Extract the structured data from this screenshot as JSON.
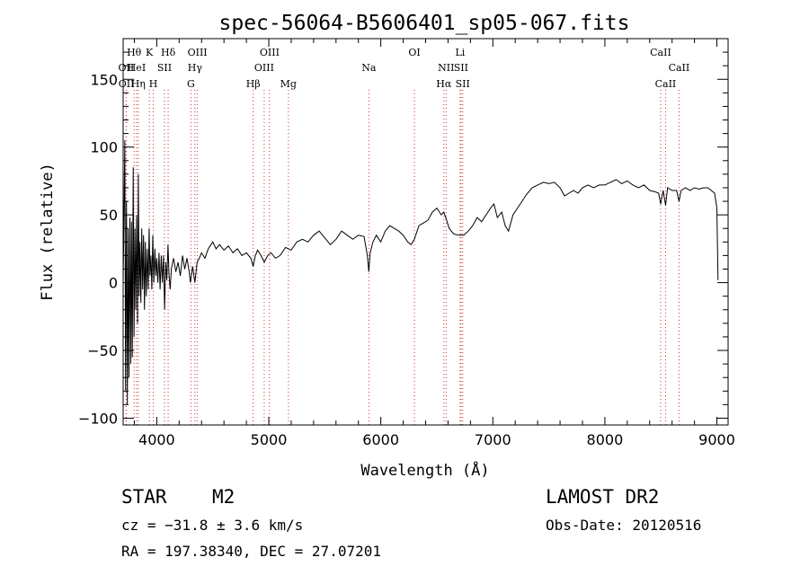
{
  "chart_data": {
    "type": "line",
    "title": "spec-56064-B5606401_sp05-067.fits",
    "xlabel": "Wavelength (Å)",
    "ylabel": "Flux (relative)",
    "xlim": [
      3700,
      9100
    ],
    "ylim": [
      -105,
      180
    ],
    "xticks": [
      4000,
      5000,
      6000,
      7000,
      8000,
      9000
    ],
    "yticks": [
      -100,
      -50,
      0,
      50,
      100,
      150
    ],
    "grid": false,
    "series": [
      {
        "values": [
          [
            3700,
            0
          ],
          [
            3715,
            105
          ],
          [
            3722,
            -80
          ],
          [
            3730,
            60
          ],
          [
            3738,
            -90
          ],
          [
            3745,
            40
          ],
          [
            3752,
            -70
          ],
          [
            3760,
            48
          ],
          [
            3768,
            -60
          ],
          [
            3775,
            45
          ],
          [
            3782,
            -55
          ],
          [
            3790,
            85
          ],
          [
            3797,
            -40
          ],
          [
            3805,
            40
          ],
          [
            3812,
            -20
          ],
          [
            3820,
            50
          ],
          [
            3828,
            -30
          ],
          [
            3836,
            80
          ],
          [
            3843,
            -10
          ],
          [
            3850,
            30
          ],
          [
            3858,
            -15
          ],
          [
            3866,
            40
          ],
          [
            3874,
            -5
          ],
          [
            3882,
            35
          ],
          [
            3890,
            -20
          ],
          [
            3898,
            30
          ],
          [
            3906,
            -10
          ],
          [
            3915,
            25
          ],
          [
            3924,
            -5
          ],
          [
            3932,
            40
          ],
          [
            3940,
            5
          ],
          [
            3948,
            20
          ],
          [
            3956,
            -5
          ],
          [
            3965,
            35
          ],
          [
            3974,
            0
          ],
          [
            3983,
            25
          ],
          [
            3992,
            5
          ],
          [
            4000,
            18
          ],
          [
            4010,
            0
          ],
          [
            4020,
            22
          ],
          [
            4030,
            -5
          ],
          [
            4040,
            20
          ],
          [
            4050,
            0
          ],
          [
            4060,
            20
          ],
          [
            4070,
            -20
          ],
          [
            4080,
            15
          ],
          [
            4090,
            2
          ],
          [
            4100,
            28
          ],
          [
            4110,
            5
          ],
          [
            4120,
            -5
          ],
          [
            4130,
            10
          ],
          [
            4150,
            18
          ],
          [
            4170,
            8
          ],
          [
            4190,
            15
          ],
          [
            4210,
            5
          ],
          [
            4230,
            20
          ],
          [
            4250,
            10
          ],
          [
            4270,
            18
          ],
          [
            4290,
            8
          ],
          [
            4300,
            0
          ],
          [
            4320,
            12
          ],
          [
            4340,
            0
          ],
          [
            4360,
            15
          ],
          [
            4380,
            18
          ],
          [
            4400,
            22
          ],
          [
            4430,
            18
          ],
          [
            4460,
            25
          ],
          [
            4500,
            30
          ],
          [
            4530,
            25
          ],
          [
            4560,
            28
          ],
          [
            4600,
            24
          ],
          [
            4640,
            27
          ],
          [
            4680,
            22
          ],
          [
            4720,
            25
          ],
          [
            4760,
            20
          ],
          [
            4800,
            22
          ],
          [
            4840,
            18
          ],
          [
            4860,
            12
          ],
          [
            4880,
            20
          ],
          [
            4900,
            24
          ],
          [
            4930,
            20
          ],
          [
            4960,
            15
          ],
          [
            4990,
            20
          ],
          [
            5020,
            22
          ],
          [
            5060,
            18
          ],
          [
            5100,
            20
          ],
          [
            5150,
            26
          ],
          [
            5200,
            24
          ],
          [
            5250,
            30
          ],
          [
            5300,
            32
          ],
          [
            5350,
            30
          ],
          [
            5400,
            35
          ],
          [
            5450,
            38
          ],
          [
            5500,
            33
          ],
          [
            5550,
            28
          ],
          [
            5600,
            32
          ],
          [
            5650,
            38
          ],
          [
            5700,
            35
          ],
          [
            5750,
            32
          ],
          [
            5800,
            35
          ],
          [
            5850,
            34
          ],
          [
            5880,
            20
          ],
          [
            5893,
            8
          ],
          [
            5905,
            22
          ],
          [
            5930,
            30
          ],
          [
            5960,
            35
          ],
          [
            6000,
            30
          ],
          [
            6040,
            38
          ],
          [
            6080,
            42
          ],
          [
            6120,
            40
          ],
          [
            6160,
            38
          ],
          [
            6200,
            35
          ],
          [
            6240,
            30
          ],
          [
            6270,
            28
          ],
          [
            6300,
            32
          ],
          [
            6340,
            42
          ],
          [
            6380,
            44
          ],
          [
            6420,
            46
          ],
          [
            6460,
            52
          ],
          [
            6500,
            55
          ],
          [
            6540,
            50
          ],
          [
            6563,
            52
          ],
          [
            6580,
            48
          ],
          [
            6610,
            40
          ],
          [
            6650,
            36
          ],
          [
            6700,
            35
          ],
          [
            6740,
            35
          ],
          [
            6780,
            38
          ],
          [
            6820,
            42
          ],
          [
            6860,
            48
          ],
          [
            6900,
            45
          ],
          [
            6940,
            50
          ],
          [
            6980,
            55
          ],
          [
            7010,
            58
          ],
          [
            7040,
            48
          ],
          [
            7080,
            52
          ],
          [
            7110,
            42
          ],
          [
            7140,
            38
          ],
          [
            7180,
            50
          ],
          [
            7220,
            55
          ],
          [
            7260,
            60
          ],
          [
            7300,
            65
          ],
          [
            7350,
            70
          ],
          [
            7400,
            72
          ],
          [
            7450,
            74
          ],
          [
            7500,
            73
          ],
          [
            7550,
            74
          ],
          [
            7600,
            70
          ],
          [
            7640,
            64
          ],
          [
            7680,
            66
          ],
          [
            7720,
            68
          ],
          [
            7760,
            66
          ],
          [
            7800,
            70
          ],
          [
            7850,
            72
          ],
          [
            7900,
            70
          ],
          [
            7950,
            72
          ],
          [
            8000,
            72
          ],
          [
            8050,
            74
          ],
          [
            8100,
            76
          ],
          [
            8150,
            73
          ],
          [
            8200,
            75
          ],
          [
            8250,
            72
          ],
          [
            8300,
            70
          ],
          [
            8350,
            72
          ],
          [
            8400,
            68
          ],
          [
            8450,
            67
          ],
          [
            8480,
            66
          ],
          [
            8498,
            58
          ],
          [
            8520,
            68
          ],
          [
            8542,
            57
          ],
          [
            8560,
            70
          ],
          [
            8600,
            68
          ],
          [
            8640,
            68
          ],
          [
            8662,
            60
          ],
          [
            8680,
            68
          ],
          [
            8720,
            70
          ],
          [
            8760,
            68
          ],
          [
            8800,
            70
          ],
          [
            8840,
            69
          ],
          [
            8880,
            70
          ],
          [
            8920,
            70
          ],
          [
            8950,
            68
          ],
          [
            8980,
            66
          ],
          [
            9000,
            55
          ],
          [
            9010,
            2
          ]
        ]
      }
    ],
    "lines": [
      {
        "label": "Hθ",
        "x": 3798,
        "row": 1
      },
      {
        "label": "OII",
        "x": 3727,
        "row": 2
      },
      {
        "label": "OII",
        "x": 3729,
        "row": 3
      },
      {
        "label": "HeI",
        "x": 3820,
        "row": 2
      },
      {
        "label": "Hη",
        "x": 3835,
        "row": 3
      },
      {
        "label": "K",
        "x": 3934,
        "row": 1
      },
      {
        "label": "SII",
        "x": 4069,
        "row": 2
      },
      {
        "label": "H",
        "x": 3969,
        "row": 3
      },
      {
        "label": "Hδ",
        "x": 4102,
        "row": 1
      },
      {
        "label": "OIII",
        "x": 4363,
        "row": 1
      },
      {
        "label": "Hγ",
        "x": 4341,
        "row": 2
      },
      {
        "label": "G",
        "x": 4305,
        "row": 3
      },
      {
        "label": "Hβ",
        "x": 4861,
        "row": 3
      },
      {
        "label": "OIII",
        "x": 5007,
        "row": 1
      },
      {
        "label": "OIII",
        "x": 4959,
        "row": 2
      },
      {
        "label": "Mg",
        "x": 5175,
        "row": 3
      },
      {
        "label": "Na",
        "x": 5893,
        "row": 2
      },
      {
        "label": "OI",
        "x": 6300,
        "row": 1
      },
      {
        "label": "Li",
        "x": 6708,
        "row": 1
      },
      {
        "label": "NII",
        "x": 6583,
        "row": 2
      },
      {
        "label": "SII",
        "x": 6716,
        "row": 2
      },
      {
        "label": "Hα",
        "x": 6563,
        "row": 3
      },
      {
        "label": "SII",
        "x": 6731,
        "row": 3
      },
      {
        "label": "CaII",
        "x": 8498,
        "row": 1
      },
      {
        "label": "CaII",
        "x": 8662,
        "row": 2
      },
      {
        "label": "CaII",
        "x": 8542,
        "row": 3
      }
    ]
  },
  "info": {
    "class": "STAR",
    "subclass": "M2",
    "survey": "LAMOST DR2",
    "cz": "cz = −31.8 ± 3.6 km/s",
    "obsdate": "Obs-Date: 20120516",
    "coords": "RA = 197.38340, DEC =  27.07201"
  }
}
